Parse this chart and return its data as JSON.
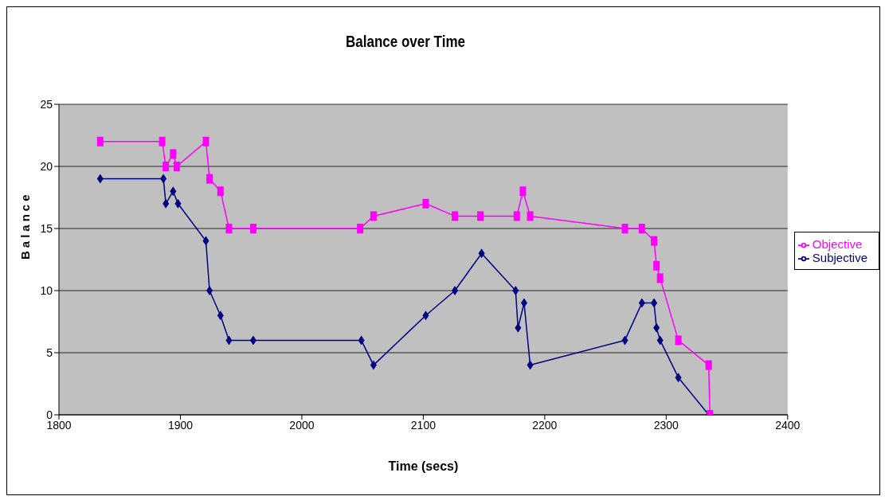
{
  "chart_data": {
    "type": "line",
    "title": "Balance over Time",
    "xlabel": "Time (secs)",
    "ylabel": "Balance",
    "xlim": [
      1800,
      2400
    ],
    "xticks": [
      1800,
      1900,
      2000,
      2100,
      2200,
      2300,
      2400
    ],
    "ylim": [
      0,
      25
    ],
    "yticks": [
      0,
      5,
      10,
      15,
      20,
      25
    ],
    "grid": "y",
    "legend": "right",
    "series": [
      {
        "name": "Subjective",
        "color": "#000080",
        "marker": "diamond",
        "x": [
          1834,
          1886,
          1888,
          1894,
          1898,
          1921,
          1924,
          1933,
          1940,
          1960,
          2049,
          2059,
          2102,
          2126,
          2148,
          2176,
          2178,
          2183,
          2188,
          2266,
          2280,
          2290,
          2292,
          2295,
          2310,
          2335
        ],
        "values": [
          19,
          19,
          17,
          18,
          17,
          14,
          10,
          8,
          6,
          6,
          6,
          4,
          8,
          10,
          13,
          10,
          7,
          9,
          4,
          6,
          9,
          9,
          7,
          6,
          3,
          0
        ]
      },
      {
        "name": "Objective",
        "color": "#ff00ff",
        "marker": "square",
        "x": [
          1834,
          1885,
          1888,
          1894,
          1897,
          1921,
          1924,
          1933,
          1940,
          1960,
          2048,
          2059,
          2102,
          2126,
          2147,
          2177,
          2182,
          2188,
          2266,
          2280,
          2290,
          2292,
          2295,
          2310,
          2335,
          2336
        ],
        "values": [
          22,
          22,
          20,
          21,
          20,
          22,
          19,
          18,
          15,
          15,
          15,
          16,
          17,
          16,
          16,
          16,
          18,
          16,
          15,
          15,
          14,
          12,
          11,
          6,
          4,
          0
        ]
      }
    ]
  }
}
